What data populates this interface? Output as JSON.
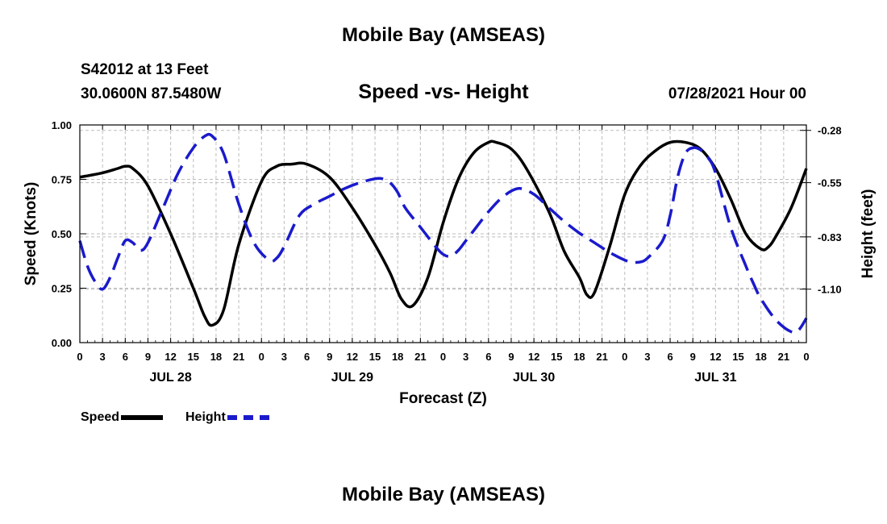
{
  "header": {
    "title": "Mobile Bay (AMSEAS)",
    "station": "S42012 at 13 Feet",
    "coords": "30.0600N  87.5480W",
    "subtitle": "Speed -vs- Height",
    "datetime": "07/28/2021 Hour 00"
  },
  "footer": {
    "title": "Mobile Bay (AMSEAS)"
  },
  "legend": {
    "speed_label": "Speed",
    "height_label": "Height"
  },
  "colors": {
    "speed": "#000000",
    "height": "#1a1acc"
  },
  "chart_data": {
    "type": "line",
    "xlabel": "Forecast (Z)",
    "ylabel": "Speed (Knots)",
    "y2label": "Height (feet)",
    "xlim": [
      0,
      96
    ],
    "ylim": [
      0,
      1.0
    ],
    "y2lim": [
      -1.376,
      -0.252
    ],
    "x_tick_labels": [
      "0",
      "3",
      "6",
      "9",
      "12",
      "15",
      "18",
      "21",
      "0",
      "3",
      "6",
      "9",
      "12",
      "15",
      "18",
      "21",
      "0",
      "3",
      "6",
      "9",
      "12",
      "15",
      "18",
      "21",
      "0",
      "3",
      "6",
      "9",
      "12",
      "15",
      "18",
      "21",
      "0"
    ],
    "y_ticks": [
      0.0,
      0.25,
      0.5,
      0.75,
      1.0
    ],
    "y_tick_labels": [
      "0.00",
      "0.25",
      "0.50",
      "0.75",
      "1.00"
    ],
    "y2_ticks": [
      -1.1,
      -0.83,
      -0.55,
      -0.28
    ],
    "y2_tick_labels": [
      "-1.10",
      "-0.83",
      "-0.55",
      "-0.28"
    ],
    "day_labels": [
      {
        "label": "JUL 28",
        "x": 12
      },
      {
        "label": "JUL 29",
        "x": 36
      },
      {
        "label": "JUL 30",
        "x": 60
      },
      {
        "label": "JUL 31",
        "x": 84
      }
    ],
    "grid": true,
    "legend_position": "bottom-left",
    "series": [
      {
        "name": "Speed",
        "axis": "left",
        "style": "solid",
        "x": [
          0,
          3,
          5,
          6,
          7,
          9,
          12,
          15,
          16.5,
          17.5,
          19,
          21,
          24,
          26,
          28,
          30,
          33,
          36,
          39,
          41,
          42.5,
          44,
          46,
          48,
          50,
          52,
          54,
          55,
          57,
          59,
          62,
          64,
          66,
          67,
          68,
          70,
          72,
          74,
          76,
          78,
          80,
          82,
          84,
          86,
          88,
          90,
          91,
          92,
          94,
          96
        ],
        "y": [
          0.76,
          0.78,
          0.8,
          0.81,
          0.8,
          0.72,
          0.5,
          0.25,
          0.12,
          0.08,
          0.15,
          0.45,
          0.74,
          0.81,
          0.82,
          0.82,
          0.76,
          0.62,
          0.45,
          0.32,
          0.2,
          0.17,
          0.3,
          0.55,
          0.75,
          0.87,
          0.92,
          0.92,
          0.89,
          0.8,
          0.6,
          0.42,
          0.3,
          0.22,
          0.23,
          0.44,
          0.68,
          0.81,
          0.88,
          0.92,
          0.92,
          0.89,
          0.8,
          0.66,
          0.5,
          0.43,
          0.44,
          0.49,
          0.62,
          0.8
        ]
      },
      {
        "name": "Height",
        "axis": "right",
        "style": "dashed",
        "x": [
          0,
          1,
          2,
          3,
          4,
          5,
          6,
          7,
          8,
          9,
          11,
          13,
          15,
          16.5,
          17.5,
          19,
          21,
          23,
          25,
          26,
          27,
          29,
          31,
          33,
          35,
          37,
          39,
          40,
          41,
          42,
          43,
          45,
          47,
          48,
          49,
          50,
          51,
          52,
          54,
          56,
          58,
          60,
          62,
          64,
          66,
          68,
          70,
          72,
          73,
          74,
          75,
          77,
          78,
          79,
          80,
          81,
          82,
          83,
          84,
          86,
          88,
          89,
          90,
          92,
          94,
          95,
          96
        ],
        "y": [
          -0.85,
          -0.98,
          -1.06,
          -1.1,
          -1.04,
          -0.94,
          -0.85,
          -0.86,
          -0.9,
          -0.86,
          -0.68,
          -0.5,
          -0.37,
          -0.31,
          -0.31,
          -0.4,
          -0.66,
          -0.86,
          -0.95,
          -0.94,
          -0.88,
          -0.72,
          -0.66,
          -0.62,
          -0.58,
          -0.55,
          -0.53,
          -0.53,
          -0.55,
          -0.6,
          -0.68,
          -0.78,
          -0.88,
          -0.92,
          -0.93,
          -0.9,
          -0.85,
          -0.8,
          -0.7,
          -0.62,
          -0.58,
          -0.61,
          -0.68,
          -0.75,
          -0.81,
          -0.86,
          -0.91,
          -0.95,
          -0.96,
          -0.96,
          -0.94,
          -0.85,
          -0.72,
          -0.52,
          -0.4,
          -0.37,
          -0.38,
          -0.42,
          -0.5,
          -0.78,
          -0.98,
          -1.07,
          -1.15,
          -1.26,
          -1.32,
          -1.31,
          -1.25
        ]
      }
    ]
  }
}
